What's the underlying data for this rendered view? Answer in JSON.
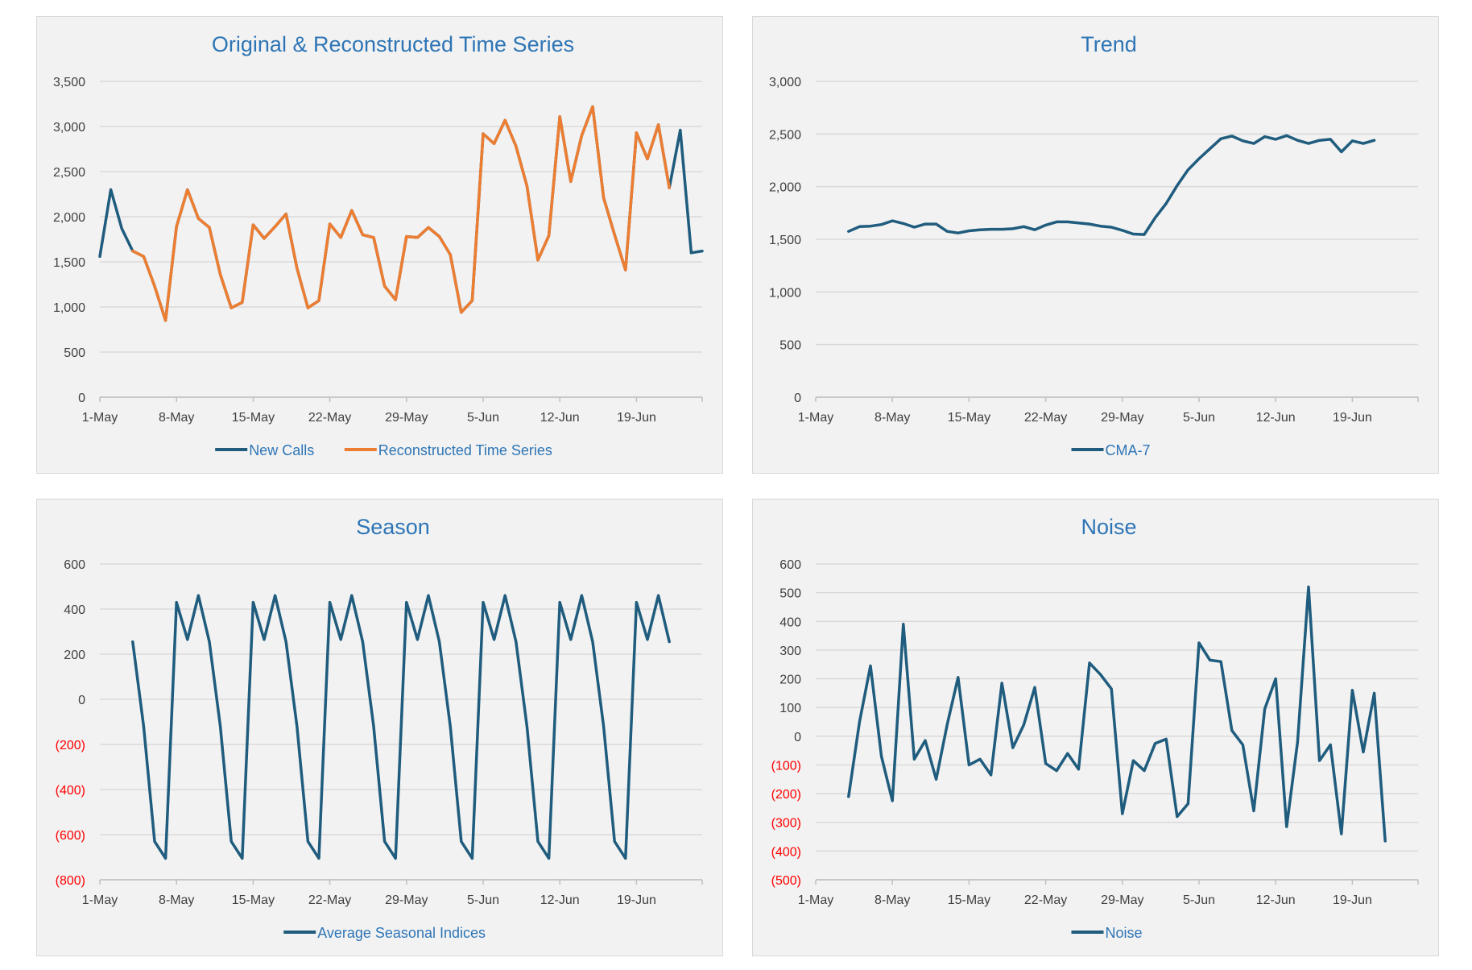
{
  "chart_data": [
    {
      "type": "line",
      "title": "Original & Reconstructed Time Series",
      "x_start": "1-May",
      "xticks": [
        "1-May",
        "8-May",
        "15-May",
        "22-May",
        "29-May",
        "5-Jun",
        "12-Jun",
        "19-Jun"
      ],
      "yticks": [
        "0",
        "500",
        "1,000",
        "1,500",
        "2,000",
        "2,500",
        "3,000",
        "3,500"
      ],
      "ylim": [
        0,
        3500
      ],
      "grid": true,
      "legend": "bottom",
      "series": [
        {
          "name": "New Calls",
          "color": "#1f5c7d",
          "values": [
            1560,
            2300,
            1870,
            1620,
            1560,
            1230,
            850,
            1890,
            2300,
            1980,
            1880,
            1360,
            990,
            1050,
            1910,
            1760,
            1890,
            2030,
            1430,
            990,
            1070,
            1920,
            1770,
            2070,
            1800,
            1770,
            1230,
            1080,
            1780,
            1770,
            1880,
            1780,
            1580,
            940,
            1070,
            2920,
            2810,
            3070,
            2780,
            2340,
            1520,
            1790,
            3110,
            2390,
            2900,
            3220,
            2210,
            1800,
            1410,
            2930,
            2640,
            3020,
            2320,
            2960,
            1600,
            1620
          ]
        },
        {
          "name": "Reconstructed Time Series",
          "color": "#ed7d31",
          "values": [
            null,
            null,
            null,
            1620,
            1560,
            1230,
            850,
            1890,
            2300,
            1980,
            1880,
            1360,
            990,
            1050,
            1910,
            1760,
            1890,
            2030,
            1430,
            990,
            1070,
            1920,
            1770,
            2070,
            1800,
            1770,
            1230,
            1080,
            1780,
            1770,
            1880,
            1780,
            1580,
            940,
            1070,
            2920,
            2810,
            3070,
            2780,
            2340,
            1520,
            1790,
            3110,
            2390,
            2900,
            3220,
            2210,
            1800,
            1410,
            2930,
            2640,
            3020,
            2320,
            null,
            null,
            null
          ]
        }
      ]
    },
    {
      "type": "line",
      "title": "Trend",
      "x_start": "1-May",
      "xticks": [
        "1-May",
        "8-May",
        "15-May",
        "22-May",
        "29-May",
        "5-Jun",
        "12-Jun",
        "19-Jun"
      ],
      "yticks": [
        "0",
        "500",
        "1,000",
        "1,500",
        "2,000",
        "2,500",
        "3,000"
      ],
      "ylim": [
        0,
        3000
      ],
      "grid": true,
      "legend": "bottom",
      "series": [
        {
          "name": "CMA-7",
          "color": "#1f5c7d",
          "values": [
            null,
            null,
            null,
            1575,
            1620,
            1625,
            1640,
            1675,
            1650,
            1615,
            1645,
            1645,
            1575,
            1560,
            1580,
            1590,
            1595,
            1595,
            1600,
            1620,
            1590,
            1635,
            1665,
            1665,
            1655,
            1645,
            1625,
            1615,
            1585,
            1550,
            1545,
            1705,
            1840,
            2010,
            2160,
            2265,
            2360,
            2455,
            2480,
            2435,
            2410,
            2475,
            2450,
            2485,
            2440,
            2410,
            2440,
            2450,
            2330,
            2435,
            2410,
            2440,
            null,
            null,
            null,
            null
          ]
        }
      ]
    },
    {
      "type": "line",
      "title": "Season",
      "x_start": "1-May",
      "xticks": [
        "1-May",
        "8-May",
        "15-May",
        "22-May",
        "29-May",
        "5-Jun",
        "12-Jun",
        "19-Jun"
      ],
      "yticks": [
        "(800)",
        "(600)",
        "(400)",
        "(200)",
        "0",
        "200",
        "400",
        "600"
      ],
      "ylim": [
        -800,
        600
      ],
      "grid": true,
      "legend": "bottom",
      "series": [
        {
          "name": "Average Seasonal Indices",
          "color": "#1f5c7d",
          "values": [
            null,
            null,
            null,
            255,
            -120,
            -630,
            -705,
            430,
            265,
            460,
            255,
            -120,
            -630,
            -705,
            430,
            265,
            460,
            255,
            -120,
            -630,
            -705,
            430,
            265,
            460,
            255,
            -120,
            -630,
            -705,
            430,
            265,
            460,
            255,
            -120,
            -630,
            -705,
            430,
            265,
            460,
            255,
            -120,
            -630,
            -705,
            430,
            265,
            460,
            255,
            -120,
            -630,
            -705,
            430,
            265,
            460,
            255,
            null,
            null,
            null
          ]
        }
      ]
    },
    {
      "type": "line",
      "title": "Noise",
      "x_start": "1-May",
      "xticks": [
        "1-May",
        "8-May",
        "15-May",
        "22-May",
        "29-May",
        "5-Jun",
        "12-Jun",
        "19-Jun"
      ],
      "yticks": [
        "(500)",
        "(400)",
        "(300)",
        "(200)",
        "(100)",
        "0",
        "100",
        "200",
        "300",
        "400",
        "500",
        "600"
      ],
      "ylim": [
        -500,
        600
      ],
      "grid": true,
      "legend": "bottom",
      "series": [
        {
          "name": "Noise",
          "color": "#1f5c7d",
          "values": [
            null,
            null,
            null,
            -210,
            50,
            245,
            -70,
            -225,
            390,
            -80,
            -15,
            -150,
            40,
            205,
            -100,
            -80,
            -135,
            185,
            -40,
            40,
            170,
            -95,
            -120,
            -60,
            -115,
            255,
            215,
            165,
            -270,
            -85,
            -120,
            -25,
            -10,
            -280,
            -235,
            325,
            265,
            260,
            20,
            -30,
            -260,
            95,
            200,
            -315,
            -20,
            520,
            -85,
            -30,
            -340,
            160,
            -55,
            150,
            -365,
            null,
            null,
            null
          ]
        }
      ]
    }
  ]
}
